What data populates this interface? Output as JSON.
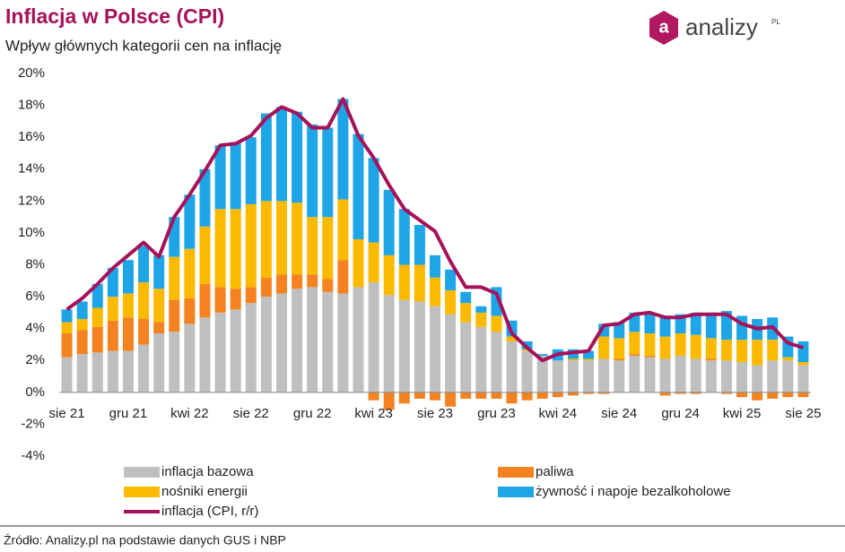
{
  "chart_data": {
    "type": "bar",
    "stacked": true,
    "title": "Inflacja w Polsce (CPI)",
    "subtitle": "Wpływ głównych kategorii cen na inflację",
    "source": "Źródło: Analizy.pl na podstawie danych GUS i NBP",
    "logo": {
      "icon": "a",
      "name": "analizy",
      "suffix": "PL"
    },
    "categories": [
      "sie 21",
      null,
      null,
      null,
      "gru 21",
      null,
      null,
      null,
      "kwi 22",
      null,
      null,
      null,
      "sie 22",
      null,
      null,
      null,
      "gru 22",
      null,
      null,
      null,
      "kwi 23",
      null,
      null,
      null,
      "sie 23",
      null,
      null,
      null,
      "gru 23",
      null,
      null,
      null,
      "kwi 24",
      null,
      null,
      null,
      "sie 24",
      null,
      null,
      null,
      "gru 24",
      null,
      null,
      null,
      "kwi 25",
      null,
      null,
      null,
      "sie 25"
    ],
    "series": [
      {
        "name": "inflacja bazowa",
        "color": "#bfbfbf",
        "values": [
          2.2,
          2.4,
          2.5,
          2.6,
          2.6,
          3.0,
          3.7,
          3.8,
          4.3,
          4.7,
          5.0,
          5.2,
          5.6,
          6.0,
          6.2,
          6.5,
          6.6,
          6.3,
          6.2,
          6.6,
          6.9,
          6.1,
          5.8,
          5.7,
          5.4,
          4.9,
          4.4,
          4.1,
          3.8,
          3.2,
          2.6,
          2.3,
          2.0,
          2.0,
          2.0,
          2.1,
          2.0,
          2.3,
          2.2,
          2.1,
          2.3,
          2.1,
          2.0,
          2.0,
          1.9,
          1.7,
          2.0,
          2.0,
          1.7
        ]
      },
      {
        "name": "paliwa",
        "color": "#f58220",
        "values": [
          1.5,
          1.5,
          1.6,
          1.9,
          2.1,
          1.6,
          0.7,
          2.0,
          1.6,
          2.1,
          1.6,
          1.3,
          1.0,
          1.2,
          1.2,
          0.9,
          0.8,
          0.8,
          2.1,
          0,
          -0.5,
          -1.1,
          -0.7,
          -0.4,
          -0.5,
          -0.9,
          -0.4,
          -0.4,
          -0.4,
          -0.7,
          -0.5,
          -0.4,
          -0.3,
          -0.2,
          -0.1,
          -0.1,
          0.1,
          0.1,
          0.1,
          -0.2,
          -0.1,
          -0.1,
          0.1,
          -0.1,
          -0.3,
          -0.5,
          -0.4,
          -0.3,
          -0.3
        ]
      },
      {
        "name": "nośniki energii",
        "color": "#fbb900",
        "values": [
          0.7,
          0.7,
          1.2,
          1.5,
          1.5,
          2.3,
          2.1,
          2.7,
          3.1,
          3.6,
          4.9,
          5.0,
          5.2,
          4.8,
          4.6,
          4.5,
          3.6,
          3.9,
          3.8,
          3.0,
          2.5,
          2.5,
          2.2,
          2.3,
          1.8,
          1.5,
          1.2,
          0.9,
          1.0,
          0.3,
          0.1,
          0.0,
          0.0,
          0.1,
          0.1,
          1.4,
          1.3,
          1.4,
          1.4,
          1.4,
          1.4,
          1.5,
          1.3,
          1.3,
          1.4,
          1.6,
          1.3,
          0.2,
          0.2
        ]
      },
      {
        "name": "żywność i napoje bezalkoholowe",
        "color": "#1ea5e8",
        "values": [
          0.8,
          1.1,
          1.5,
          1.8,
          2.1,
          2.3,
          2.1,
          2.5,
          3.4,
          3.6,
          4.0,
          4.2,
          4.2,
          5.5,
          5.9,
          5.7,
          5.8,
          5.6,
          6.3,
          6.6,
          5.3,
          4.1,
          3.5,
          2.5,
          1.4,
          1.3,
          0.7,
          0.4,
          1.8,
          1.0,
          0.5,
          0.1,
          0.7,
          0.6,
          0.5,
          0.8,
          1.0,
          1.2,
          1.3,
          1.3,
          1.2,
          1.4,
          1.6,
          1.8,
          1.5,
          1.3,
          1.4,
          1.3,
          1.3
        ]
      },
      {
        "name": "inflacja (CPI, r/r)",
        "type": "line",
        "color": "#a5125a",
        "values": [
          5.2,
          5.9,
          6.8,
          7.8,
          8.6,
          9.4,
          8.5,
          11.0,
          12.4,
          13.9,
          15.5,
          15.6,
          16.1,
          17.2,
          17.9,
          17.5,
          16.6,
          16.6,
          18.4,
          16.1,
          14.7,
          13.0,
          11.5,
          10.8,
          10.1,
          8.2,
          6.6,
          6.6,
          6.2,
          3.7,
          2.8,
          2.0,
          2.4,
          2.5,
          2.6,
          4.2,
          4.3,
          4.9,
          5.0,
          4.7,
          4.7,
          4.9,
          4.9,
          4.9,
          4.3,
          4.0,
          4.1,
          3.1,
          2.8
        ]
      }
    ],
    "ylim": [
      -4,
      20
    ],
    "yticks": [
      {
        "value": -4,
        "label": "-4%"
      },
      {
        "value": -2,
        "label": "-2%"
      },
      {
        "value": 0,
        "label": "0%"
      },
      {
        "value": 2,
        "label": "2%"
      },
      {
        "value": 4,
        "label": "4%"
      },
      {
        "value": 6,
        "label": "6%"
      },
      {
        "value": 8,
        "label": "8%"
      },
      {
        "value": 10,
        "label": "10%"
      },
      {
        "value": 12,
        "label": "12%"
      },
      {
        "value": 14,
        "label": "14%"
      },
      {
        "value": 16,
        "label": "16%"
      },
      {
        "value": 18,
        "label": "18%"
      },
      {
        "value": 20,
        "label": "20%"
      }
    ],
    "grid": false
  }
}
